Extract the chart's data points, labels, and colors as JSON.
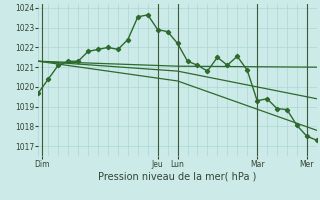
{
  "background_color": "#cceae7",
  "grid_color": "#aad8d3",
  "line_color": "#2d6a2d",
  "title": "Pression niveau de la mer( hPa )",
  "ylim": [
    1016.5,
    1024.2
  ],
  "yticks": [
    1017,
    1018,
    1019,
    1020,
    1021,
    1022,
    1023,
    1024
  ],
  "xlim": [
    0,
    168
  ],
  "day_labels": [
    "Dim",
    "Jeu",
    "Lun",
    "Mar",
    "Mer"
  ],
  "day_positions": [
    2,
    72,
    84,
    132,
    162
  ],
  "day_vlines": [
    2,
    72,
    84,
    132,
    162
  ],
  "series_main": {
    "x": [
      0,
      6,
      12,
      18,
      24,
      30,
      36,
      42,
      48,
      54,
      60,
      66,
      72,
      78,
      84,
      90,
      96,
      102,
      108,
      114,
      120,
      126,
      132,
      138,
      144,
      150,
      156,
      162,
      168
    ],
    "y": [
      1019.7,
      1020.4,
      1021.1,
      1021.3,
      1021.3,
      1021.8,
      1021.9,
      1022.0,
      1021.9,
      1022.4,
      1023.55,
      1023.65,
      1022.9,
      1022.8,
      1022.2,
      1021.3,
      1021.1,
      1020.8,
      1021.5,
      1021.1,
      1021.55,
      1020.85,
      1019.3,
      1019.4,
      1018.9,
      1018.85,
      1018.05,
      1017.5,
      1017.3
    ],
    "marker": "D",
    "markersize": 2.2,
    "linewidth": 1.0
  },
  "series_lines": [
    {
      "x": [
        0,
        84,
        168
      ],
      "y": [
        1021.3,
        1021.05,
        1021.0
      ]
    },
    {
      "x": [
        0,
        84,
        168
      ],
      "y": [
        1021.3,
        1020.8,
        1019.4
      ]
    },
    {
      "x": [
        0,
        84,
        168
      ],
      "y": [
        1021.3,
        1020.3,
        1017.8
      ]
    }
  ]
}
